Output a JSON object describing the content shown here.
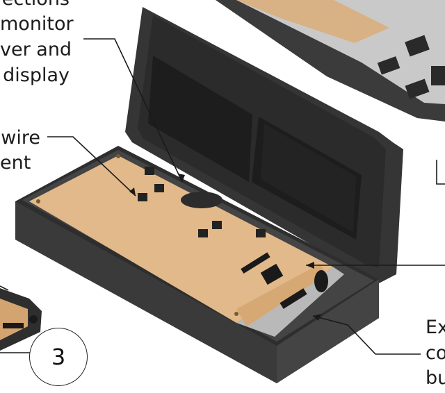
{
  "labels": {
    "top_left": [
      "ections",
      "monitor",
      "ver and",
      "display"
    ],
    "mid_left": [
      "wire",
      "ent"
    ],
    "bottom_right": [
      "Ex",
      "co",
      "bu"
    ]
  },
  "callout_number": "3",
  "colors": {
    "enclosure": "#3a3a3a",
    "enclosure_dark": "#262626",
    "screen": "#1d1d1d",
    "board": "#e2b98a",
    "leader": "#1a1a1a"
  }
}
